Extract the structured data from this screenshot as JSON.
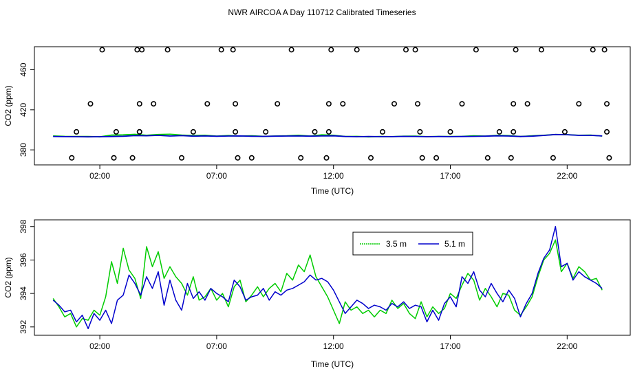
{
  "figure": {
    "title": "NWR AIRCOA A  Day 110712  Calibrated Timeseries"
  },
  "chart_data": [
    {
      "type": "scatter",
      "title": "",
      "xlabel": "Time (UTC)",
      "ylabel": "CO2 (ppm)",
      "xlim": [
        -0.8,
        24.7
      ],
      "ylim": [
        365,
        483
      ],
      "xticks": [
        2,
        7,
        12,
        17,
        22
      ],
      "xtick_labels": [
        "02:00",
        "07:00",
        "12:00",
        "17:00",
        "22:00"
      ],
      "yticks": [
        380,
        420,
        460
      ],
      "ytick_labels": [
        "380",
        "420",
        "460"
      ],
      "calibration_points": {
        "name": "calibration",
        "color": "#000000",
        "x": [
          0.8,
          1.0,
          1.6,
          2.1,
          2.6,
          2.7,
          3.4,
          3.6,
          3.7,
          3.7,
          3.7,
          3.8,
          4.3,
          4.9,
          5.5,
          6.0,
          6.6,
          7.2,
          7.7,
          7.8,
          7.8,
          7.9,
          8.5,
          9.1,
          9.6,
          10.2,
          10.6,
          11.2,
          11.7,
          11.8,
          11.8,
          11.9,
          12.4,
          13.0,
          13.6,
          14.1,
          14.6,
          15.1,
          15.5,
          15.6,
          15.7,
          15.8,
          16.4,
          17.0,
          17.5,
          18.1,
          18.6,
          19.1,
          19.6,
          19.7,
          19.7,
          19.8,
          20.3,
          20.9,
          21.4,
          21.9,
          22.5,
          23.1,
          23.6,
          23.7,
          23.7,
          23.8
        ],
        "y": [
          372,
          398,
          426,
          480,
          372,
          398,
          372,
          480,
          426,
          398,
          398,
          480,
          426,
          480,
          372,
          398,
          426,
          480,
          480,
          426,
          398,
          372,
          372,
          398,
          426,
          480,
          372,
          398,
          372,
          398,
          426,
          480,
          426,
          480,
          372,
          398,
          426,
          480,
          480,
          426,
          398,
          372,
          372,
          398,
          426,
          480,
          372,
          398,
          372,
          398,
          426,
          480,
          426,
          480,
          372,
          398,
          426,
          480,
          480,
          426,
          398,
          372
        ]
      },
      "series": [
        {
          "name": "3.5 m",
          "color": "#00cc00",
          "x": [
            0.0,
            0.5,
            1.0,
            1.5,
            2.0,
            2.5,
            3.0,
            3.5,
            4.0,
            4.5,
            5.0,
            5.5,
            6.0,
            6.5,
            7.0,
            7.5,
            8.0,
            8.5,
            9.0,
            9.5,
            10.0,
            10.5,
            11.0,
            11.5,
            12.0,
            12.5,
            13.0,
            13.5,
            14.0,
            14.5,
            15.0,
            15.5,
            16.0,
            16.5,
            17.0,
            17.5,
            18.0,
            18.5,
            19.0,
            19.5,
            20.0,
            20.5,
            21.0,
            21.5,
            22.0,
            22.5,
            23.0,
            23.5
          ],
          "values": [
            393.9,
            393.5,
            393.3,
            393.4,
            393.0,
            394.8,
            395.0,
            395.5,
            394.6,
            395.3,
            395.6,
            394.8,
            394.3,
            394.6,
            393.7,
            394.3,
            393.8,
            394.0,
            393.5,
            393.8,
            394.0,
            394.6,
            393.8,
            395.0,
            394.6,
            393.3,
            393.5,
            393.0,
            393.3,
            393.2,
            393.6,
            393.7,
            393.2,
            393.4,
            393.3,
            393.5,
            394.0,
            393.7,
            394.5,
            394.2,
            393.3,
            394.0,
            394.6,
            395.3,
            395.2,
            394.6,
            394.8,
            393.8
          ]
        },
        {
          "name": "5.1 m",
          "color": "#0000cc",
          "x": [
            0.0,
            0.5,
            1.0,
            1.5,
            2.0,
            2.5,
            3.0,
            3.5,
            4.0,
            4.5,
            5.0,
            5.5,
            6.0,
            6.5,
            7.0,
            7.5,
            8.0,
            8.5,
            9.0,
            9.5,
            10.0,
            10.5,
            11.0,
            11.5,
            12.0,
            12.5,
            13.0,
            13.5,
            14.0,
            14.5,
            15.0,
            15.5,
            16.0,
            16.5,
            17.0,
            17.5,
            18.0,
            18.5,
            19.0,
            19.5,
            20.0,
            20.5,
            21.0,
            21.5,
            22.0,
            22.5,
            23.0,
            23.5
          ],
          "values": [
            393.4,
            393.2,
            393.1,
            393.0,
            393.1,
            393.3,
            393.6,
            394.2,
            394.1,
            394.5,
            393.8,
            394.2,
            393.7,
            393.9,
            393.6,
            393.8,
            393.9,
            393.6,
            393.5,
            393.7,
            393.8,
            393.9,
            393.7,
            393.9,
            394.0,
            393.4,
            393.1,
            393.4,
            393.2,
            393.2,
            393.5,
            393.4,
            393.1,
            393.3,
            393.2,
            393.3,
            393.5,
            393.7,
            394.0,
            393.8,
            393.3,
            393.7,
            394.4,
            395.3,
            395.1,
            394.5,
            394.5,
            393.9
          ]
        }
      ]
    },
    {
      "type": "line",
      "title": "",
      "xlabel": "Time (UTC)",
      "ylabel": "CO2 (ppm)",
      "xlim": [
        -0.8,
        24.7
      ],
      "ylim": [
        391.5,
        398.4
      ],
      "xticks": [
        2,
        7,
        12,
        17,
        22
      ],
      "xtick_labels": [
        "02:00",
        "07:00",
        "12:00",
        "17:00",
        "22:00"
      ],
      "yticks": [
        392,
        394,
        396,
        398
      ],
      "ytick_labels": [
        "392",
        "394",
        "396",
        "398"
      ],
      "legend": {
        "position": "top-right"
      },
      "series": [
        {
          "name": "3.5 m",
          "color": "#00cc00",
          "x": [
            0.0,
            0.25,
            0.5,
            0.75,
            1.0,
            1.25,
            1.5,
            1.75,
            2.0,
            2.25,
            2.5,
            2.75,
            3.0,
            3.25,
            3.5,
            3.75,
            4.0,
            4.25,
            4.5,
            4.75,
            5.0,
            5.25,
            5.5,
            5.75,
            6.0,
            6.25,
            6.5,
            6.75,
            7.0,
            7.25,
            7.5,
            7.75,
            8.0,
            8.25,
            8.5,
            8.75,
            9.0,
            9.25,
            9.5,
            9.75,
            10.0,
            10.25,
            10.5,
            10.75,
            11.0,
            11.25,
            11.5,
            11.75,
            12.0,
            12.25,
            12.5,
            12.75,
            13.0,
            13.25,
            13.5,
            13.75,
            14.0,
            14.25,
            14.5,
            14.75,
            15.0,
            15.25,
            15.5,
            15.75,
            16.0,
            16.25,
            16.5,
            16.75,
            17.0,
            17.25,
            17.5,
            17.75,
            18.0,
            18.25,
            18.5,
            18.75,
            19.0,
            19.25,
            19.5,
            19.75,
            20.0,
            20.25,
            20.5,
            20.75,
            21.0,
            21.25,
            21.5,
            21.75,
            22.0,
            22.25,
            22.5,
            22.75,
            23.0,
            23.25,
            23.5
          ],
          "values": [
            393.7,
            393.2,
            392.6,
            392.8,
            392.0,
            392.5,
            392.4,
            393.0,
            392.7,
            393.8,
            395.9,
            394.6,
            396.7,
            395.4,
            394.9,
            393.7,
            396.8,
            395.6,
            396.5,
            394.9,
            395.6,
            395.0,
            394.6,
            393.9,
            395.0,
            393.6,
            393.8,
            394.3,
            393.6,
            394.0,
            393.2,
            394.4,
            394.8,
            393.5,
            393.9,
            394.4,
            393.8,
            394.3,
            394.6,
            394.1,
            395.2,
            394.8,
            395.7,
            395.3,
            396.3,
            395.0,
            394.4,
            393.8,
            393.0,
            392.2,
            393.5,
            393.0,
            393.2,
            392.8,
            393.0,
            392.6,
            393.0,
            392.8,
            393.6,
            393.1,
            393.4,
            392.8,
            392.5,
            393.5,
            392.6,
            393.2,
            392.8,
            393.1,
            394.0,
            393.7,
            394.5,
            395.2,
            394.8,
            393.6,
            394.3,
            393.8,
            393.2,
            394.0,
            393.9,
            393.0,
            392.7,
            393.2,
            393.8,
            395.0,
            396.0,
            396.4,
            397.2,
            395.3,
            395.8,
            394.9,
            395.6,
            395.3,
            394.8,
            394.9,
            394.2
          ]
        },
        {
          "name": "5.1 m",
          "color": "#0000cc",
          "x": [
            0.0,
            0.25,
            0.5,
            0.75,
            1.0,
            1.25,
            1.5,
            1.75,
            2.0,
            2.25,
            2.5,
            2.75,
            3.0,
            3.25,
            3.5,
            3.75,
            4.0,
            4.25,
            4.5,
            4.75,
            5.0,
            5.25,
            5.5,
            5.75,
            6.0,
            6.25,
            6.5,
            6.75,
            7.0,
            7.25,
            7.5,
            7.75,
            8.0,
            8.25,
            8.5,
            8.75,
            9.0,
            9.25,
            9.5,
            9.75,
            10.0,
            10.25,
            10.5,
            10.75,
            11.0,
            11.25,
            11.5,
            11.75,
            12.0,
            12.25,
            12.5,
            12.75,
            13.0,
            13.25,
            13.5,
            13.75,
            14.0,
            14.25,
            14.5,
            14.75,
            15.0,
            15.25,
            15.5,
            15.75,
            16.0,
            16.25,
            16.5,
            16.75,
            17.0,
            17.25,
            17.5,
            17.75,
            18.0,
            18.25,
            18.5,
            18.75,
            19.0,
            19.25,
            19.5,
            19.75,
            20.0,
            20.25,
            20.5,
            20.75,
            21.0,
            21.25,
            21.5,
            21.75,
            22.0,
            22.25,
            22.5,
            22.75,
            23.0,
            23.25,
            23.5
          ],
          "values": [
            393.6,
            393.3,
            392.9,
            393.0,
            392.3,
            392.7,
            391.9,
            392.8,
            392.4,
            393.0,
            392.2,
            393.6,
            393.9,
            395.1,
            394.6,
            393.9,
            395.0,
            394.3,
            395.3,
            393.3,
            394.8,
            393.6,
            393.0,
            394.6,
            393.7,
            394.1,
            393.6,
            394.3,
            394.0,
            393.8,
            393.5,
            394.8,
            394.4,
            393.6,
            393.8,
            393.9,
            394.3,
            393.6,
            394.1,
            393.9,
            394.2,
            394.3,
            394.5,
            394.7,
            395.1,
            394.8,
            394.9,
            394.7,
            394.2,
            393.5,
            392.8,
            393.2,
            393.6,
            393.4,
            393.1,
            393.3,
            393.2,
            393.0,
            393.4,
            393.2,
            393.5,
            393.1,
            393.3,
            393.2,
            392.3,
            393.0,
            392.4,
            393.4,
            393.8,
            393.2,
            395.0,
            394.6,
            395.3,
            394.2,
            393.8,
            394.6,
            394.0,
            393.5,
            394.2,
            393.7,
            392.6,
            393.4,
            394.0,
            395.2,
            396.1,
            396.6,
            398.0,
            395.6,
            395.8,
            394.8,
            395.3,
            395.0,
            394.8,
            394.6,
            394.3
          ]
        }
      ]
    }
  ]
}
